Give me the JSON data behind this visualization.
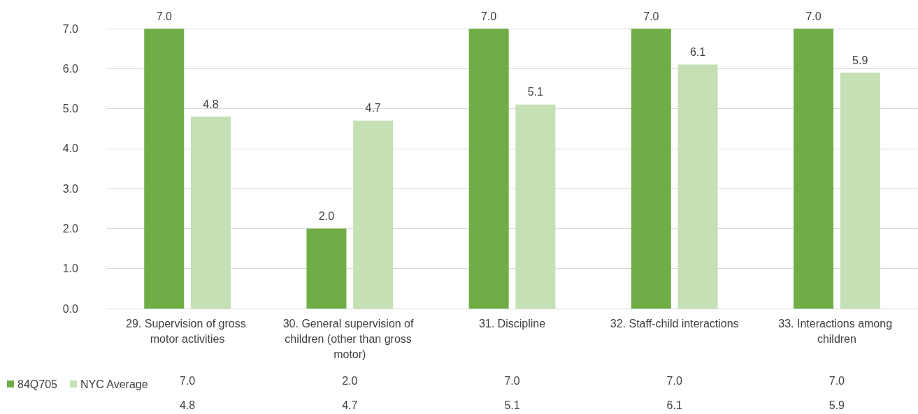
{
  "chart_data": {
    "type": "bar",
    "categories": [
      "29. Supervision of gross motor activities",
      "30. General supervision of children (other than gross motor)",
      "31. Discipline",
      "32. Staff-child interactions",
      "33. Interactions among children"
    ],
    "series": [
      {
        "name": "84Q705",
        "color": "#70ad47",
        "values": [
          7.0,
          2.0,
          7.0,
          7.0,
          7.0
        ],
        "value_labels": [
          "7.0",
          "2.0",
          "7.0",
          "7.0",
          "7.0"
        ]
      },
      {
        "name": "NYC Average",
        "color": "#c5e0b4",
        "values": [
          4.8,
          4.7,
          5.1,
          6.1,
          5.9
        ],
        "value_labels": [
          "4.8",
          "4.7",
          "5.1",
          "6.1",
          "5.9"
        ]
      }
    ],
    "ylim": [
      0,
      7
    ],
    "yticks": [
      {
        "value": 0,
        "label": "0.0"
      },
      {
        "value": 1,
        "label": "1.0"
      },
      {
        "value": 2,
        "label": "2.0"
      },
      {
        "value": 3,
        "label": "3.0"
      },
      {
        "value": 4,
        "label": "4.0"
      },
      {
        "value": 5,
        "label": "5.0"
      },
      {
        "value": 6,
        "label": "6.0"
      },
      {
        "value": 7,
        "label": "7.0"
      }
    ],
    "grid": "y",
    "legend": "bottom left"
  }
}
